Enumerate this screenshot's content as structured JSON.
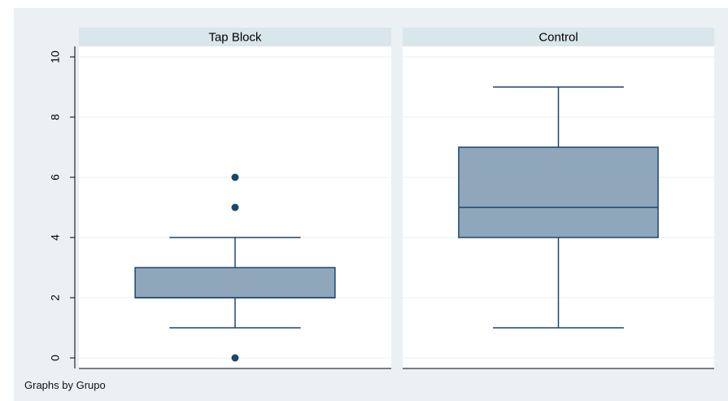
{
  "chart_data": {
    "type": "boxplot",
    "by_variable": "Grupo",
    "note": "Graphs by Grupo",
    "ylim": [
      0,
      10
    ],
    "yticks": [
      0,
      2,
      4,
      6,
      8,
      10
    ],
    "grid": true,
    "panels": [
      {
        "title": "Tap Block",
        "whisker_low": 1,
        "q1": 2,
        "median": 2,
        "q3": 3,
        "whisker_high": 4,
        "outliers": [
          0,
          5,
          6
        ]
      },
      {
        "title": "Control",
        "whisker_low": 1,
        "q1": 4,
        "median": 5,
        "q3": 7,
        "whisker_high": 9,
        "outliers": []
      }
    ]
  },
  "colors": {
    "outer_background": "#eaf0f4",
    "plot_background": "#ffffff",
    "panel_title_bar": "#d9e6ec",
    "box_fill": "#8fa6bb",
    "box_stroke": "#1a476f",
    "outlier": "#1a476f",
    "grid": "#eaf2f3",
    "axis": "#000000"
  }
}
